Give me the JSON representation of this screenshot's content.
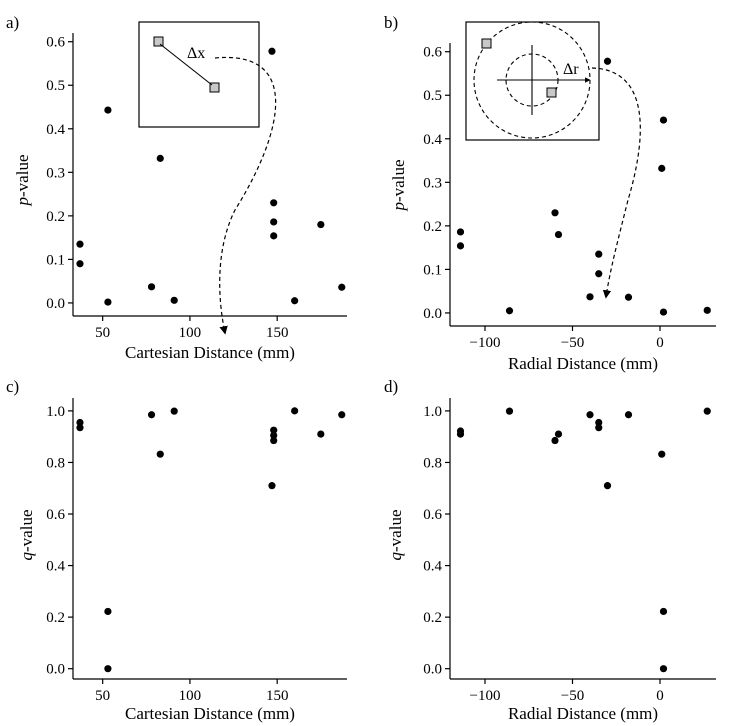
{
  "panels": [
    {
      "id": "a",
      "label": "a)",
      "ylabel_italic": "p",
      "ylabel_rest": "-value",
      "xlabel": "Cartesian Distance (mm)",
      "inset_label": "Δx"
    },
    {
      "id": "b",
      "label": "b)",
      "ylabel_italic": "p",
      "ylabel_rest": "-value",
      "xlabel": "Radial Distance (mm)",
      "inset_label": "Δr"
    },
    {
      "id": "c",
      "label": "c)",
      "ylabel_italic": "q",
      "ylabel_rest": "-value",
      "xlabel": "Cartesian Distance (mm)"
    },
    {
      "id": "d",
      "label": "d)",
      "ylabel_italic": "q",
      "ylabel_rest": "-value",
      "xlabel": "Radial Distance (mm)"
    }
  ],
  "chart_data": [
    {
      "panel": "a",
      "type": "scatter",
      "xlabel": "Cartesian Distance (mm)",
      "ylabel": "p-value",
      "xlim": [
        33,
        190
      ],
      "ylim": [
        -0.03,
        0.62
      ],
      "xticks": [
        50,
        100,
        150
      ],
      "yticks": [
        0.0,
        0.1,
        0.2,
        0.3,
        0.4,
        0.5,
        0.6
      ],
      "ytick_labels": [
        "0.0",
        "0.1",
        "0.2",
        "0.3",
        "0.4",
        "0.5",
        "0.6"
      ],
      "x": [
        37,
        37,
        53,
        53,
        78,
        83,
        91,
        147,
        148,
        148,
        148,
        160,
        175,
        187
      ],
      "y": [
        0.135,
        0.09,
        0.443,
        0.002,
        0.037,
        0.332,
        0.006,
        0.578,
        0.23,
        0.186,
        0.154,
        0.005,
        0.18,
        0.036
      ]
    },
    {
      "panel": "b",
      "type": "scatter",
      "xlabel": "Radial Distance (mm)",
      "ylabel": "p-value",
      "xlim": [
        -120,
        32
      ],
      "ylim": [
        -0.03,
        0.62
      ],
      "xticks": [
        -100,
        -50,
        0
      ],
      "xtick_labels": [
        "−100",
        "−50",
        "0"
      ],
      "yticks": [
        0.0,
        0.1,
        0.2,
        0.3,
        0.4,
        0.5,
        0.6
      ],
      "ytick_labels": [
        "0.0",
        "0.1",
        "0.2",
        "0.3",
        "0.4",
        "0.5",
        "0.6"
      ],
      "x": [
        -114,
        -114,
        -86,
        -60,
        -58,
        -40,
        -35,
        -35,
        -30,
        -18,
        1,
        2,
        2,
        27
      ],
      "y": [
        0.186,
        0.154,
        0.005,
        0.23,
        0.18,
        0.037,
        0.135,
        0.09,
        0.578,
        0.036,
        0.332,
        0.443,
        0.002,
        0.006
      ]
    },
    {
      "panel": "c",
      "type": "scatter",
      "xlabel": "Cartesian Distance (mm)",
      "ylabel": "q-value",
      "xlim": [
        33,
        190
      ],
      "ylim": [
        -0.04,
        1.05
      ],
      "xticks": [
        50,
        100,
        150
      ],
      "yticks": [
        0.0,
        0.2,
        0.4,
        0.6,
        0.8,
        1.0
      ],
      "ytick_labels": [
        "0.0",
        "0.2",
        "0.4",
        "0.6",
        "0.8",
        "1.0"
      ],
      "x": [
        37,
        37,
        53,
        53,
        78,
        83,
        91,
        147,
        148,
        148,
        148,
        160,
        175,
        187
      ],
      "y": [
        0.955,
        0.935,
        0.222,
        0.0,
        0.985,
        0.832,
        0.999,
        0.71,
        0.925,
        0.905,
        0.885,
        1.0,
        0.91,
        0.985
      ]
    },
    {
      "panel": "d",
      "type": "scatter",
      "xlabel": "Radial Distance (mm)",
      "ylabel": "q-value",
      "xlim": [
        -120,
        32
      ],
      "ylim": [
        -0.04,
        1.05
      ],
      "xticks": [
        -100,
        -50,
        0
      ],
      "xtick_labels": [
        "−100",
        "−50",
        "0"
      ],
      "yticks": [
        0.0,
        0.2,
        0.4,
        0.6,
        0.8,
        1.0
      ],
      "ytick_labels": [
        "0.0",
        "0.2",
        "0.4",
        "0.6",
        "0.8",
        "1.0"
      ],
      "x": [
        -114,
        -114,
        -86,
        -60,
        -58,
        -40,
        -35,
        -35,
        -30,
        -18,
        1,
        2,
        2,
        27
      ],
      "y": [
        0.922,
        0.91,
        0.999,
        0.885,
        0.91,
        0.985,
        0.955,
        0.935,
        0.71,
        0.985,
        0.832,
        0.222,
        0.0,
        0.999
      ]
    }
  ]
}
